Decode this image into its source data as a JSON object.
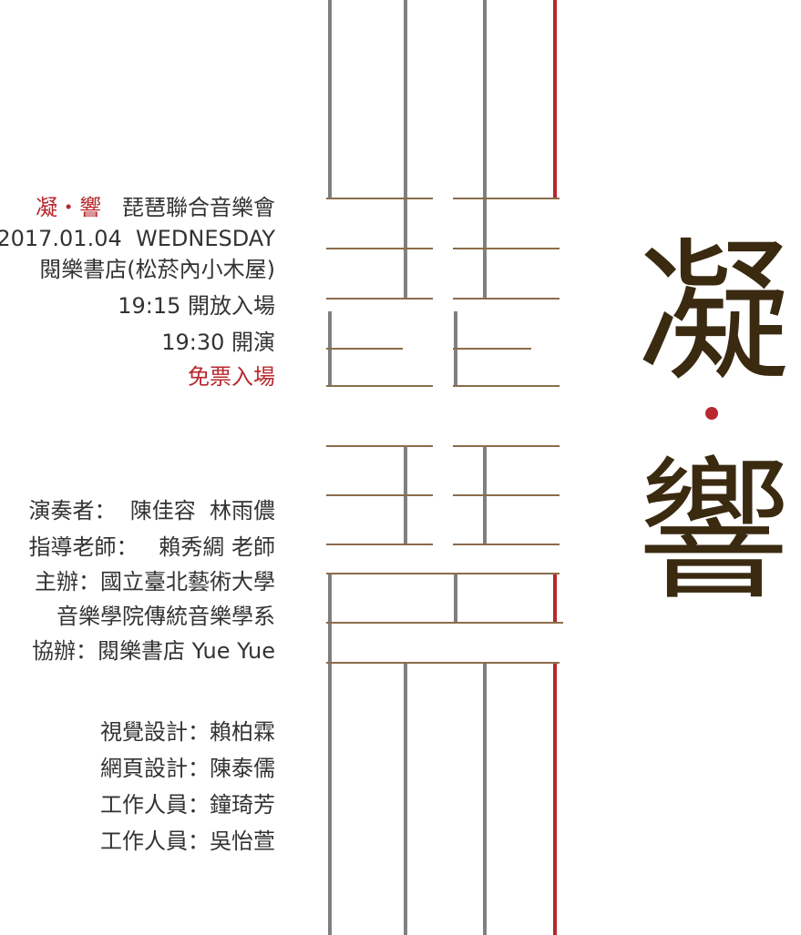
{
  "concert": {
    "title_red": "凝・響",
    "title_rest": "琵琶聯合音樂會",
    "date": "2017.01.04  WEDNESDAY",
    "venue": "閱樂書店(松菸內小木屋)",
    "doors": "19:15 開放入場",
    "start": "19:30 開演",
    "admission": "免票入場"
  },
  "credits": {
    "performers": "演奏者：  陳佳容  林雨儂",
    "advisor": "指導老師：   賴秀綢 老師",
    "organizer_1": "主辦：國立臺北藝術大學",
    "organizer_2": "音樂學院傳統音樂學系",
    "co_organizer": "協辦：閱樂書店 Yue Yue"
  },
  "staff": {
    "visual": "視覺設計：賴柏霖",
    "web": "網頁設計：陳泰儒",
    "staff_1": "工作人員：鐘琦芳",
    "staff_2": "工作人員：吳怡萱"
  },
  "logo": {
    "char_1": "凝",
    "char_2": "響"
  },
  "colors": {
    "accent_red": "#b8282e",
    "string_gray": "#808080",
    "fret_brown": "#8a6d4a"
  }
}
